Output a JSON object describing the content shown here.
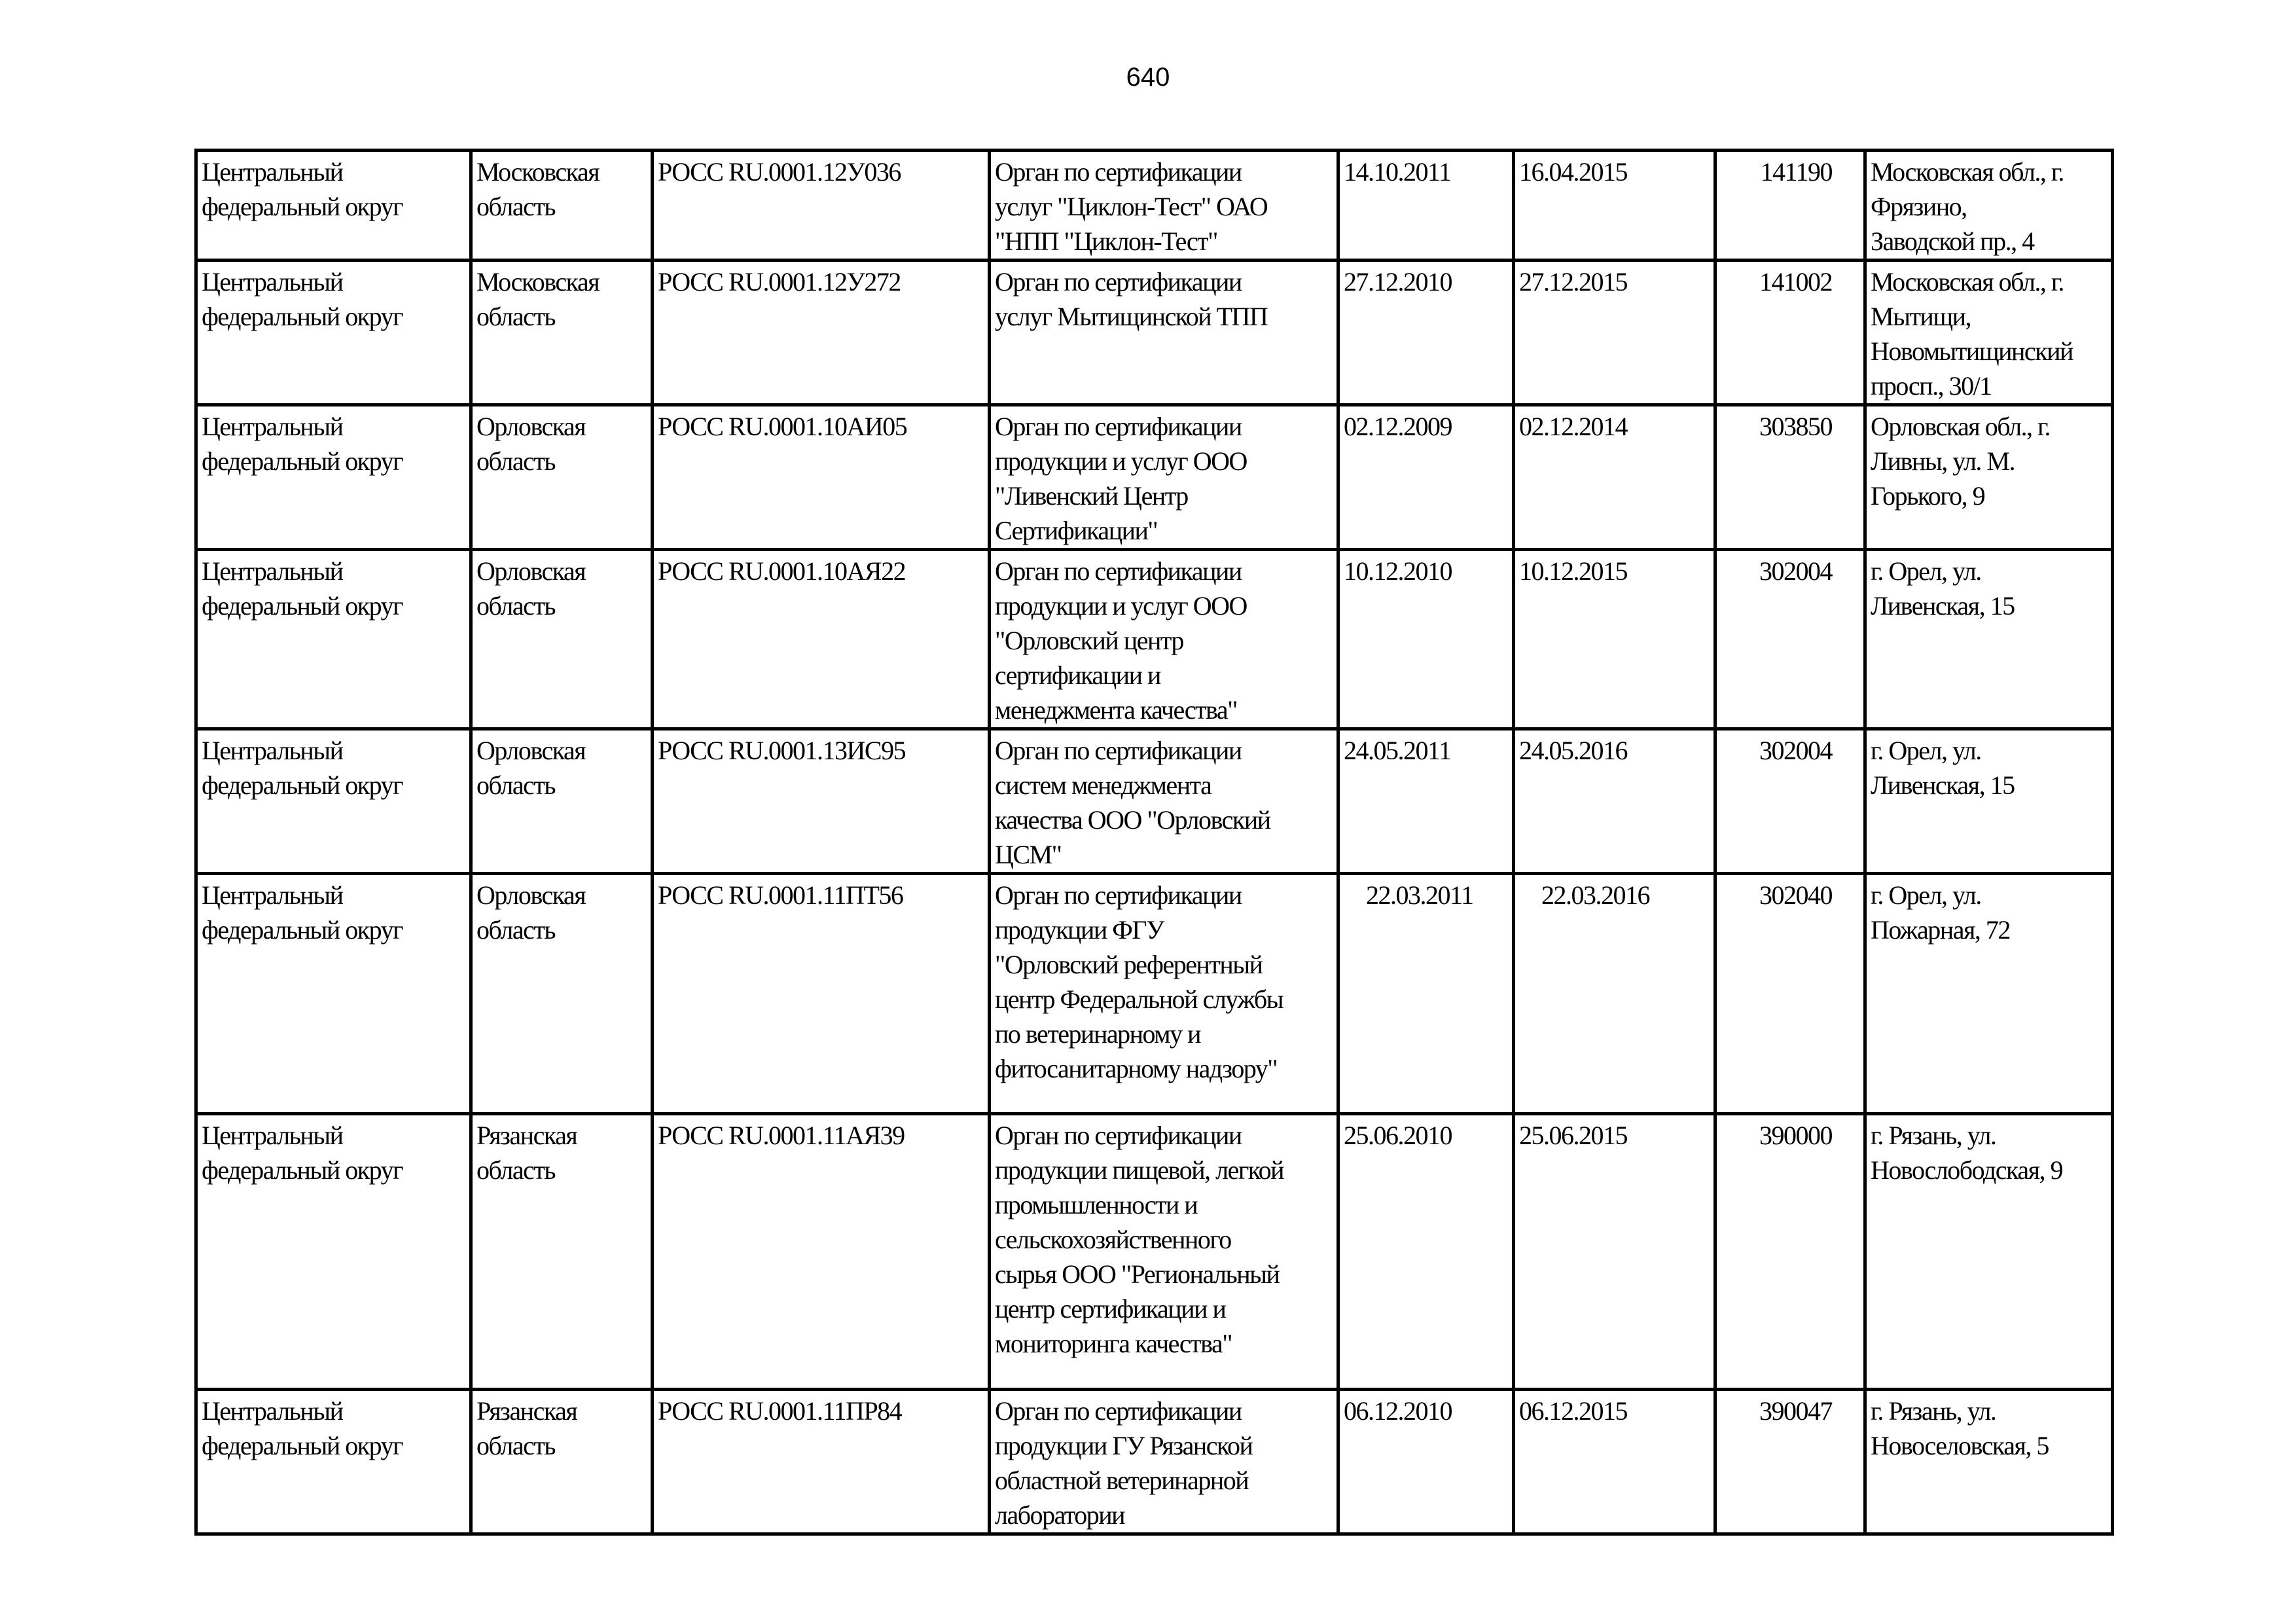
{
  "page_number": "640",
  "rows": [
    {
      "district": "Центральный\nфедеральный округ",
      "region": "Московская\nобласть",
      "code": "РОСС RU.0001.12У036",
      "body": "Орган по сертификации\nуслуг \"Циклон-Тест\" ОАО\n\"НПП \"Циклон-Тест\"",
      "date_from": "14.10.2011",
      "date_to": "16.04.2015",
      "postcode": "141190",
      "address": "Московская обл., г.\nФрязино,\nЗаводской пр., 4"
    },
    {
      "district": "Центральный\nфедеральный округ",
      "region": "Московская\nобласть",
      "code": "РОСС RU.0001.12У272",
      "body": "Орган по сертификации\nуслуг Мытищинской ТПП",
      "date_from": "27.12.2010",
      "date_to": "27.12.2015",
      "postcode": "141002",
      "address": "Московская обл., г.\nМытищи,\nНовомытищинский\nпросп., 30/1"
    },
    {
      "district": "Центральный\nфедеральный округ",
      "region": "Орловская\nобласть",
      "code": "РОСС RU.0001.10АИ05",
      "body": "Орган по сертификации\nпродукции и услуг ООО\n\"Ливенский Центр\nСертификации\"",
      "date_from": "02.12.2009",
      "date_to": "02.12.2014",
      "postcode": "303850",
      "address": "Орловская обл., г.\nЛивны, ул. М.\nГорького, 9"
    },
    {
      "district": "Центральный\nфедеральный округ",
      "region": "Орловская\nобласть",
      "code": "РОСС RU.0001.10АЯ22",
      "body": "Орган по сертификации\nпродукции и услуг ООО\n\"Орловский центр\nсертификации и\nменеджмента качества\"",
      "date_from": "10.12.2010",
      "date_to": "10.12.2015",
      "postcode": "302004",
      "address": "г. Орел, ул.\nЛивенская, 15"
    },
    {
      "district": "Центральный\nфедеральный округ",
      "region": "Орловская\nобласть",
      "code": "РОСС RU.0001.13ИС95",
      "body": "Орган по сертификации\nсистем менеджмента\nкачества ООО \"Орловский\nЦСМ\"",
      "date_from": "24.05.2011",
      "date_to": "24.05.2016",
      "postcode": "302004",
      "address": "г. Орел, ул.\nЛивенская, 15"
    },
    {
      "district": "Центральный\nфедеральный округ",
      "region": "Орловская\nобласть",
      "code": "РОСС RU.0001.11ПТ56",
      "body": "Орган по сертификации\nпродукции ФГУ\n\"Орловский референтный\nцентр Федеральной службы\nпо ветеринарному и\nфитосанитарному надзору\"",
      "date_from": "22.03.2011",
      "date_to": "22.03.2016",
      "postcode": "302040",
      "address": "г. Орел, ул.\nПожарная, 72"
    },
    {
      "district": "Центральный\nфедеральный округ",
      "region": "Рязанская\nобласть",
      "code": "РОСС RU.0001.11АЯ39",
      "body": "Орган по сертификации\nпродукции пищевой, легкой\nпромышленности и\nсельскохозяйственного\nсырья ООО \"Региональный\nцентр сертификации и\nмониторинга качества\"",
      "date_from": "25.06.2010",
      "date_to": "25.06.2015",
      "postcode": "390000",
      "address": "г. Рязань, ул.\nНовослободская, 9"
    },
    {
      "district": "Центральный\nфедеральный округ",
      "region": "Рязанская\nобласть",
      "code": "РОСС RU.0001.11ПР84",
      "body": "Орган по сертификации\nпродукции ГУ Рязанской\nобластной ветеринарной\nлаборатории",
      "date_from": "06.12.2010",
      "date_to": "06.12.2015",
      "postcode": "390047",
      "address": "г. Рязань, ул.\nНовоселовская, 5"
    }
  ]
}
